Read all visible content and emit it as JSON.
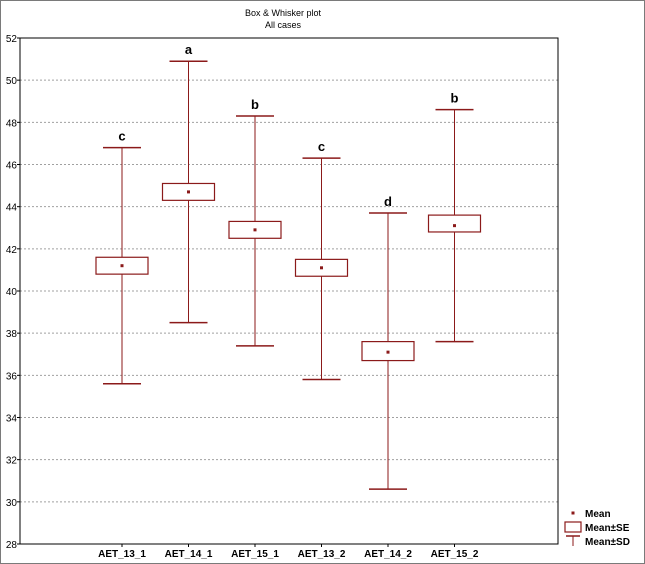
{
  "chart_data": {
    "type": "box",
    "title": "Box & Whisker plot",
    "subtitle": "All cases",
    "ylim": [
      28,
      52
    ],
    "yticks": [
      28,
      30,
      32,
      34,
      36,
      38,
      40,
      42,
      44,
      46,
      48,
      50,
      52
    ],
    "grid": true,
    "legend_position": "bottom-right",
    "categories": [
      "AET_13_1",
      "AET_14_1",
      "AET_15_1",
      "AET_13_2",
      "AET_14_2",
      "AET_15_2"
    ],
    "series": [
      {
        "category": "AET_13_1",
        "mean": 41.2,
        "se_low": 40.8,
        "se_high": 41.6,
        "sd_low": 35.6,
        "sd_high": 46.8,
        "label": "c"
      },
      {
        "category": "AET_14_1",
        "mean": 44.7,
        "se_low": 44.3,
        "se_high": 45.1,
        "sd_low": 38.5,
        "sd_high": 50.9,
        "label": "a"
      },
      {
        "category": "AET_15_1",
        "mean": 42.9,
        "se_low": 42.5,
        "se_high": 43.3,
        "sd_low": 37.4,
        "sd_high": 48.3,
        "label": "b"
      },
      {
        "category": "AET_13_2",
        "mean": 41.1,
        "se_low": 40.7,
        "se_high": 41.5,
        "sd_low": 35.8,
        "sd_high": 46.3,
        "label": "c"
      },
      {
        "category": "AET_14_2",
        "mean": 37.1,
        "se_low": 36.7,
        "se_high": 37.6,
        "sd_low": 30.6,
        "sd_high": 43.7,
        "label": "d"
      },
      {
        "category": "AET_15_2",
        "mean": 43.1,
        "se_low": 42.8,
        "se_high": 43.6,
        "sd_low": 37.6,
        "sd_high": 48.6,
        "label": "b"
      }
    ],
    "legend": [
      {
        "key": "mean",
        "label": "Mean"
      },
      {
        "key": "se",
        "label": "Mean±SE"
      },
      {
        "key": "sd",
        "label": "Mean±SD"
      }
    ],
    "colors": {
      "box": "#8b1a1a",
      "grid": "#a0a0a0",
      "axis": "#000000"
    }
  }
}
